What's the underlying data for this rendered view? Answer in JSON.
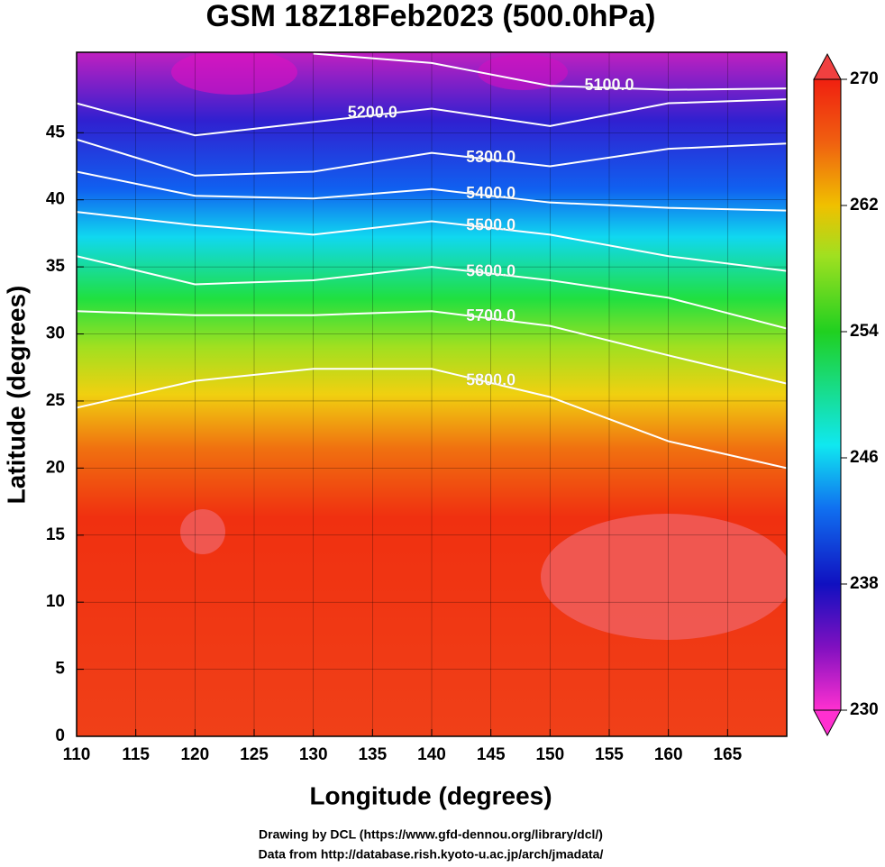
{
  "chart_data": {
    "type": "contour-map",
    "title": "GSM 18Z18Feb2023 (500.0hPa)",
    "x_label": "Longitude (degrees)",
    "y_label": "Latitude  (degrees)",
    "xlim": [
      110,
      170
    ],
    "ylim": [
      0,
      51
    ],
    "xticks": [
      110,
      115,
      120,
      125,
      130,
      135,
      140,
      145,
      150,
      155,
      160,
      165
    ],
    "yticks": [
      0,
      5,
      10,
      15,
      20,
      25,
      30,
      35,
      40,
      45
    ],
    "grid": true,
    "contour_x": [
      110,
      120,
      130,
      140,
      150,
      160,
      170
    ],
    "contours": [
      {
        "level": 5100,
        "label": "5100.0",
        "lats": [
          null,
          null,
          50.9,
          50.2,
          48.5,
          48.2,
          48.3
        ]
      },
      {
        "level": 5200,
        "label": "5200.0",
        "lats": [
          47.2,
          44.8,
          45.8,
          46.8,
          45.5,
          47.2,
          47.5
        ]
      },
      {
        "level": 5300,
        "label": "5300.0",
        "lats": [
          44.5,
          41.8,
          42.1,
          43.5,
          42.5,
          43.8,
          44.2
        ]
      },
      {
        "level": 5400,
        "label": "5400.0",
        "lats": [
          42.1,
          40.3,
          40.1,
          40.8,
          39.8,
          39.4,
          39.2
        ]
      },
      {
        "level": 5500,
        "label": "5500.0",
        "lats": [
          39.1,
          38.1,
          37.4,
          38.4,
          37.4,
          35.8,
          34.7
        ]
      },
      {
        "level": 5600,
        "label": "5600.0",
        "lats": [
          35.8,
          33.7,
          34.0,
          35.0,
          34.0,
          32.7,
          30.4
        ]
      },
      {
        "level": 5700,
        "label": "5700.0",
        "lats": [
          31.7,
          31.4,
          31.4,
          31.7,
          30.6,
          28.4,
          26.3
        ]
      },
      {
        "level": 5800,
        "label": "5800.0",
        "lats": [
          24.5,
          26.5,
          27.4,
          27.4,
          25.3,
          22.0,
          20.0
        ]
      }
    ],
    "colorbar": {
      "clim": [
        230,
        270
      ],
      "ticks": [
        230,
        238,
        246,
        254,
        262,
        270
      ]
    },
    "credits": [
      "Drawing by DCL (https://www.gfd-dennou.org/library/dcl/)",
      "Data from http://database.rish.kyoto-u.ac.jp/arch/jmadata/"
    ]
  }
}
